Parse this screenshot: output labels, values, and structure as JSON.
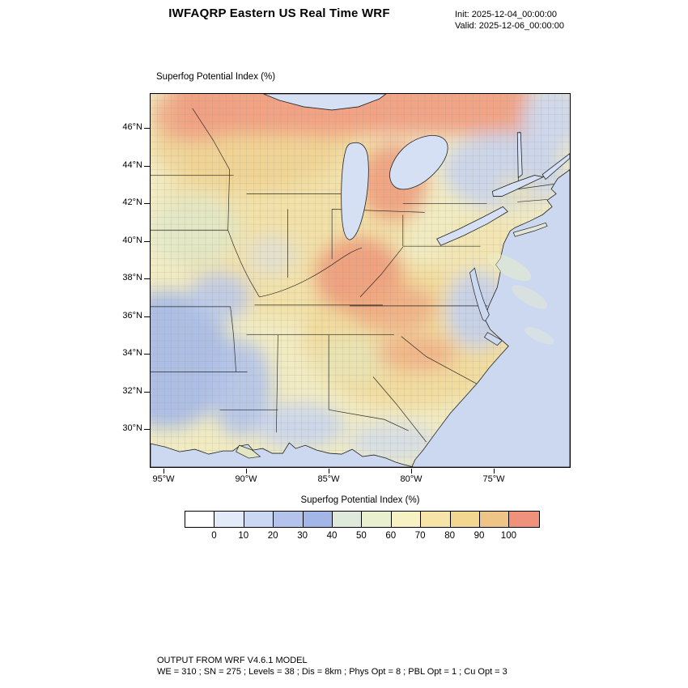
{
  "header": {
    "title": "IWFAQRP Eastern US Real Time WRF",
    "init": "Init: 2025-12-04_00:00:00",
    "valid": "Valid: 2025-12-06_00:00:00"
  },
  "map": {
    "subtitle": "Superfog Potential Index  (%)"
  },
  "axes": {
    "y_ticks": [
      "46°N",
      "44°N",
      "42°N",
      "40°N",
      "38°N",
      "36°N",
      "34°N",
      "32°N",
      "30°N"
    ],
    "x_ticks": [
      "95°W",
      "90°W",
      "85°W",
      "80°W",
      "75°W"
    ]
  },
  "legend": {
    "title": "Superfog Potential Index  (%)",
    "tick_labels": [
      "0",
      "10",
      "20",
      "30",
      "40",
      "50",
      "60",
      "70",
      "80",
      "90",
      "100"
    ],
    "colors": [
      "#FFFFFF",
      "#E4EBF8",
      "#CBD8F2",
      "#B3C3EC",
      "#A3B6E8",
      "#DFEADC",
      "#E9F0CF",
      "#F7F2C3",
      "#F6E5A7",
      "#F3D68F",
      "#EFC487",
      "#F0917B"
    ]
  },
  "footer": {
    "line1": "OUTPUT FROM WRF V4.6.1 MODEL",
    "line2": "WE = 310 ; SN = 275 ; Levels = 38 ; Dis = 8km ; Phys Opt = 8 ; PBL Opt = 1 ; Cu Opt = 3"
  },
  "chart_data": {
    "type": "heatmap",
    "title": "Superfog Potential Index  (%)",
    "x_ticks": [
      "95°W",
      "90°W",
      "85°W",
      "80°W",
      "75°W"
    ],
    "y_ticks": [
      "46°N",
      "44°N",
      "42°N",
      "40°N",
      "38°N",
      "36°N",
      "34°N",
      "32°N",
      "30°N"
    ],
    "colorbar": {
      "title": "Superfog Potential Index  (%)",
      "levels": [
        0,
        10,
        20,
        30,
        40,
        50,
        60,
        70,
        80,
        90,
        100
      ],
      "colors": [
        "#FFFFFF",
        "#E4EBF8",
        "#CBD8F2",
        "#B3C3EC",
        "#A3B6E8",
        "#DFEADC",
        "#E9F0CF",
        "#F7F2C3",
        "#F6E5A7",
        "#F3D68F",
        "#EFC487",
        "#F0917B"
      ]
    },
    "notes": "County-resolved filled map of superfog potential over the eastern US; highest values (80-100%, orange/salmon) across the upper Great Lakes band, lower Michigan and the Indiana/Ohio/Kentucky region; lowest values (0-30%, blue) over Arkansas/Louisiana, the lower Mississippi valley, the mid-Atlantic coastal plain and the Northeast; oceans shown in pale periwinkle."
  }
}
